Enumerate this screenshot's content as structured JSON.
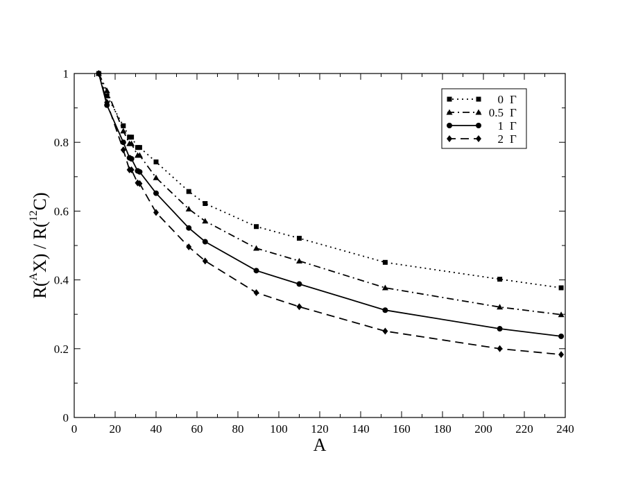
{
  "chart_data": {
    "type": "line",
    "title": "",
    "xlabel": "A",
    "ylabel": {
      "p1": "R(",
      "sup1": "A",
      "p2": "X) / R(",
      "sup2": "12",
      "p3": "C)"
    },
    "xlim": [
      0,
      240
    ],
    "ylim": [
      0,
      1
    ],
    "xticks": [
      "0",
      "20",
      "40",
      "60",
      "80",
      "100",
      "120",
      "140",
      "160",
      "180",
      "200",
      "220",
      "240"
    ],
    "yticks": [
      "0",
      "0.2",
      "0.4",
      "0.6",
      "0.8",
      "1"
    ],
    "grid": false,
    "legend_position": "top-right",
    "x": [
      12,
      16,
      24,
      27,
      28,
      31,
      32,
      40,
      56,
      64,
      89,
      110,
      152,
      208,
      238
    ],
    "series": [
      {
        "name": "0",
        "unit": "Γ",
        "dash": "dotted",
        "marker": "square",
        "values": [
          1.0,
          0.935,
          0.848,
          0.815,
          0.815,
          0.785,
          0.785,
          0.743,
          0.657,
          0.622,
          0.555,
          0.521,
          0.451,
          0.402,
          0.377
        ]
      },
      {
        "name": "0.5",
        "unit": "Γ",
        "dash": "dashdot",
        "marker": "triangle",
        "values": [
          1.0,
          0.95,
          0.833,
          0.796,
          0.796,
          0.762,
          0.762,
          0.697,
          0.606,
          0.571,
          0.492,
          0.455,
          0.377,
          0.321,
          0.299
        ]
      },
      {
        "name": "1",
        "unit": "Γ",
        "dash": "solid",
        "marker": "circle",
        "values": [
          1.0,
          0.908,
          0.8,
          0.755,
          0.752,
          0.717,
          0.714,
          0.652,
          0.551,
          0.511,
          0.427,
          0.388,
          0.312,
          0.258,
          0.236
        ]
      },
      {
        "name": "2",
        "unit": "Γ",
        "dash": "dashed",
        "marker": "diamond",
        "values": [
          1.0,
          0.916,
          0.778,
          0.72,
          0.72,
          0.682,
          0.68,
          0.596,
          0.496,
          0.455,
          0.363,
          0.322,
          0.251,
          0.2,
          0.183
        ]
      }
    ]
  }
}
